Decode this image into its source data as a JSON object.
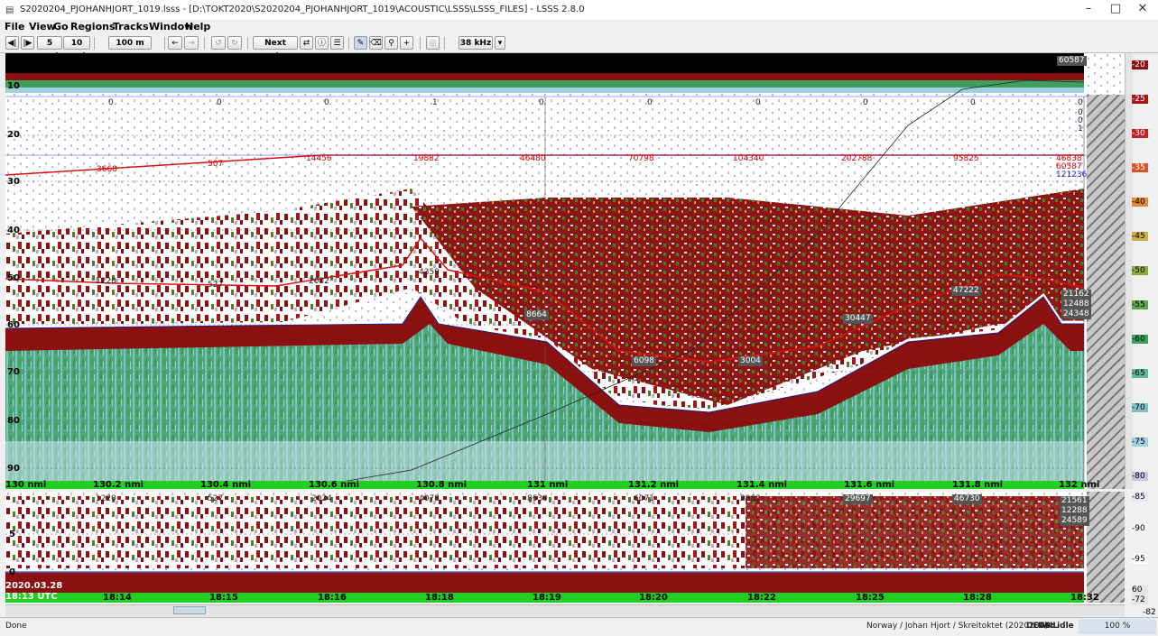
{
  "window": {
    "title": "S2020204_PJOHANHJORT_1019.lsss - [D:\\TOKT2020\\S2020204_PJOHANHJORT_1019\\ACOUSTIC\\LSSS\\LSSS_FILES] - LSSS 2.8.0",
    "minimize": "–",
    "maximize": "□",
    "close": "✕"
  },
  "menu": [
    "File",
    "View",
    "Go",
    "Regions",
    "Tracks",
    "Window",
    "Help"
  ],
  "toolbar": {
    "prev_icon": "◀|",
    "next_icon": "|▶",
    "dist5": "5 nmi",
    "dist10": "10 nmi",
    "range": "100 m",
    "back": "←",
    "forward": "→",
    "undo": "↺",
    "redo": "↻",
    "next_region": "Next region",
    "sync_icon": "⇄",
    "info_icon": "ⓘ",
    "list_icon": "☰",
    "pencil_icon": "✎",
    "eraser_icon": "⌫",
    "zoom_icon": "⚲",
    "plus_icon": "+",
    "stop_icon": "◎",
    "frequency": "38 kHz"
  },
  "depth_ticks": [
    "10",
    "20",
    "30",
    "40",
    "50",
    "60",
    "70",
    "80",
    "90"
  ],
  "distance_ticks": [
    "130 nmi",
    "130.2 nmi",
    "130.4 nmi",
    "130.6 nmi",
    "130.8 nmi",
    "131 nmi",
    "131.2 nmi",
    "131.4 nmi",
    "131.6 nmi",
    "131.8 nmi",
    "132 nmi"
  ],
  "time_ticks": [
    "18:14",
    "18:15",
    "18:16",
    "18:18",
    "18:19",
    "18:20",
    "18:22",
    "18:25",
    "18:28",
    "18:32"
  ],
  "date_label": "2020.03.28",
  "time_start": "18:13 UTC",
  "top_counter": "60587",
  "zero_row": [
    "0",
    "0",
    "0",
    "1",
    "0",
    "0",
    "0",
    "0",
    "0",
    "0"
  ],
  "zero_right": [
    "0",
    "0",
    "1"
  ],
  "red_line_values": [
    "3668",
    "507",
    "14456",
    "19882",
    "46480",
    "70798",
    "104340",
    "202788",
    "95825"
  ],
  "right_values_top": {
    "v1": "46838",
    "v2": "60587",
    "v3": "121236"
  },
  "layer_values": [
    "1220",
    "527",
    "2032",
    "4359",
    "8664",
    "6098",
    "3004",
    "30447",
    "47222"
  ],
  "right_values_mid": [
    "21162",
    "12488",
    "24348"
  ],
  "bottom_values": [
    "1220",
    "527",
    "2024",
    "4078",
    "8630",
    "6071",
    "2882",
    "29697",
    "46730"
  ],
  "right_values_bot": [
    "21561",
    "12288",
    "24589"
  ],
  "bottom_depth_ticks": [
    "5",
    "0"
  ],
  "color_scale": [
    "-20",
    "-25",
    "-30",
    "-35",
    "-40",
    "-45",
    "-50",
    "-55",
    "-60",
    "-65",
    "-70",
    "-75",
    "-80",
    "-85",
    "-90",
    "-95"
  ],
  "color_scale_bottom": [
    "60",
    "-72",
    "-82"
  ],
  "status": {
    "left": "Done",
    "cruise": "Norway / Johan Hjort / Skreitoktet (2020204)",
    "mode": "DETAIL",
    "db": "DB: idle",
    "progress": "100 %"
  }
}
